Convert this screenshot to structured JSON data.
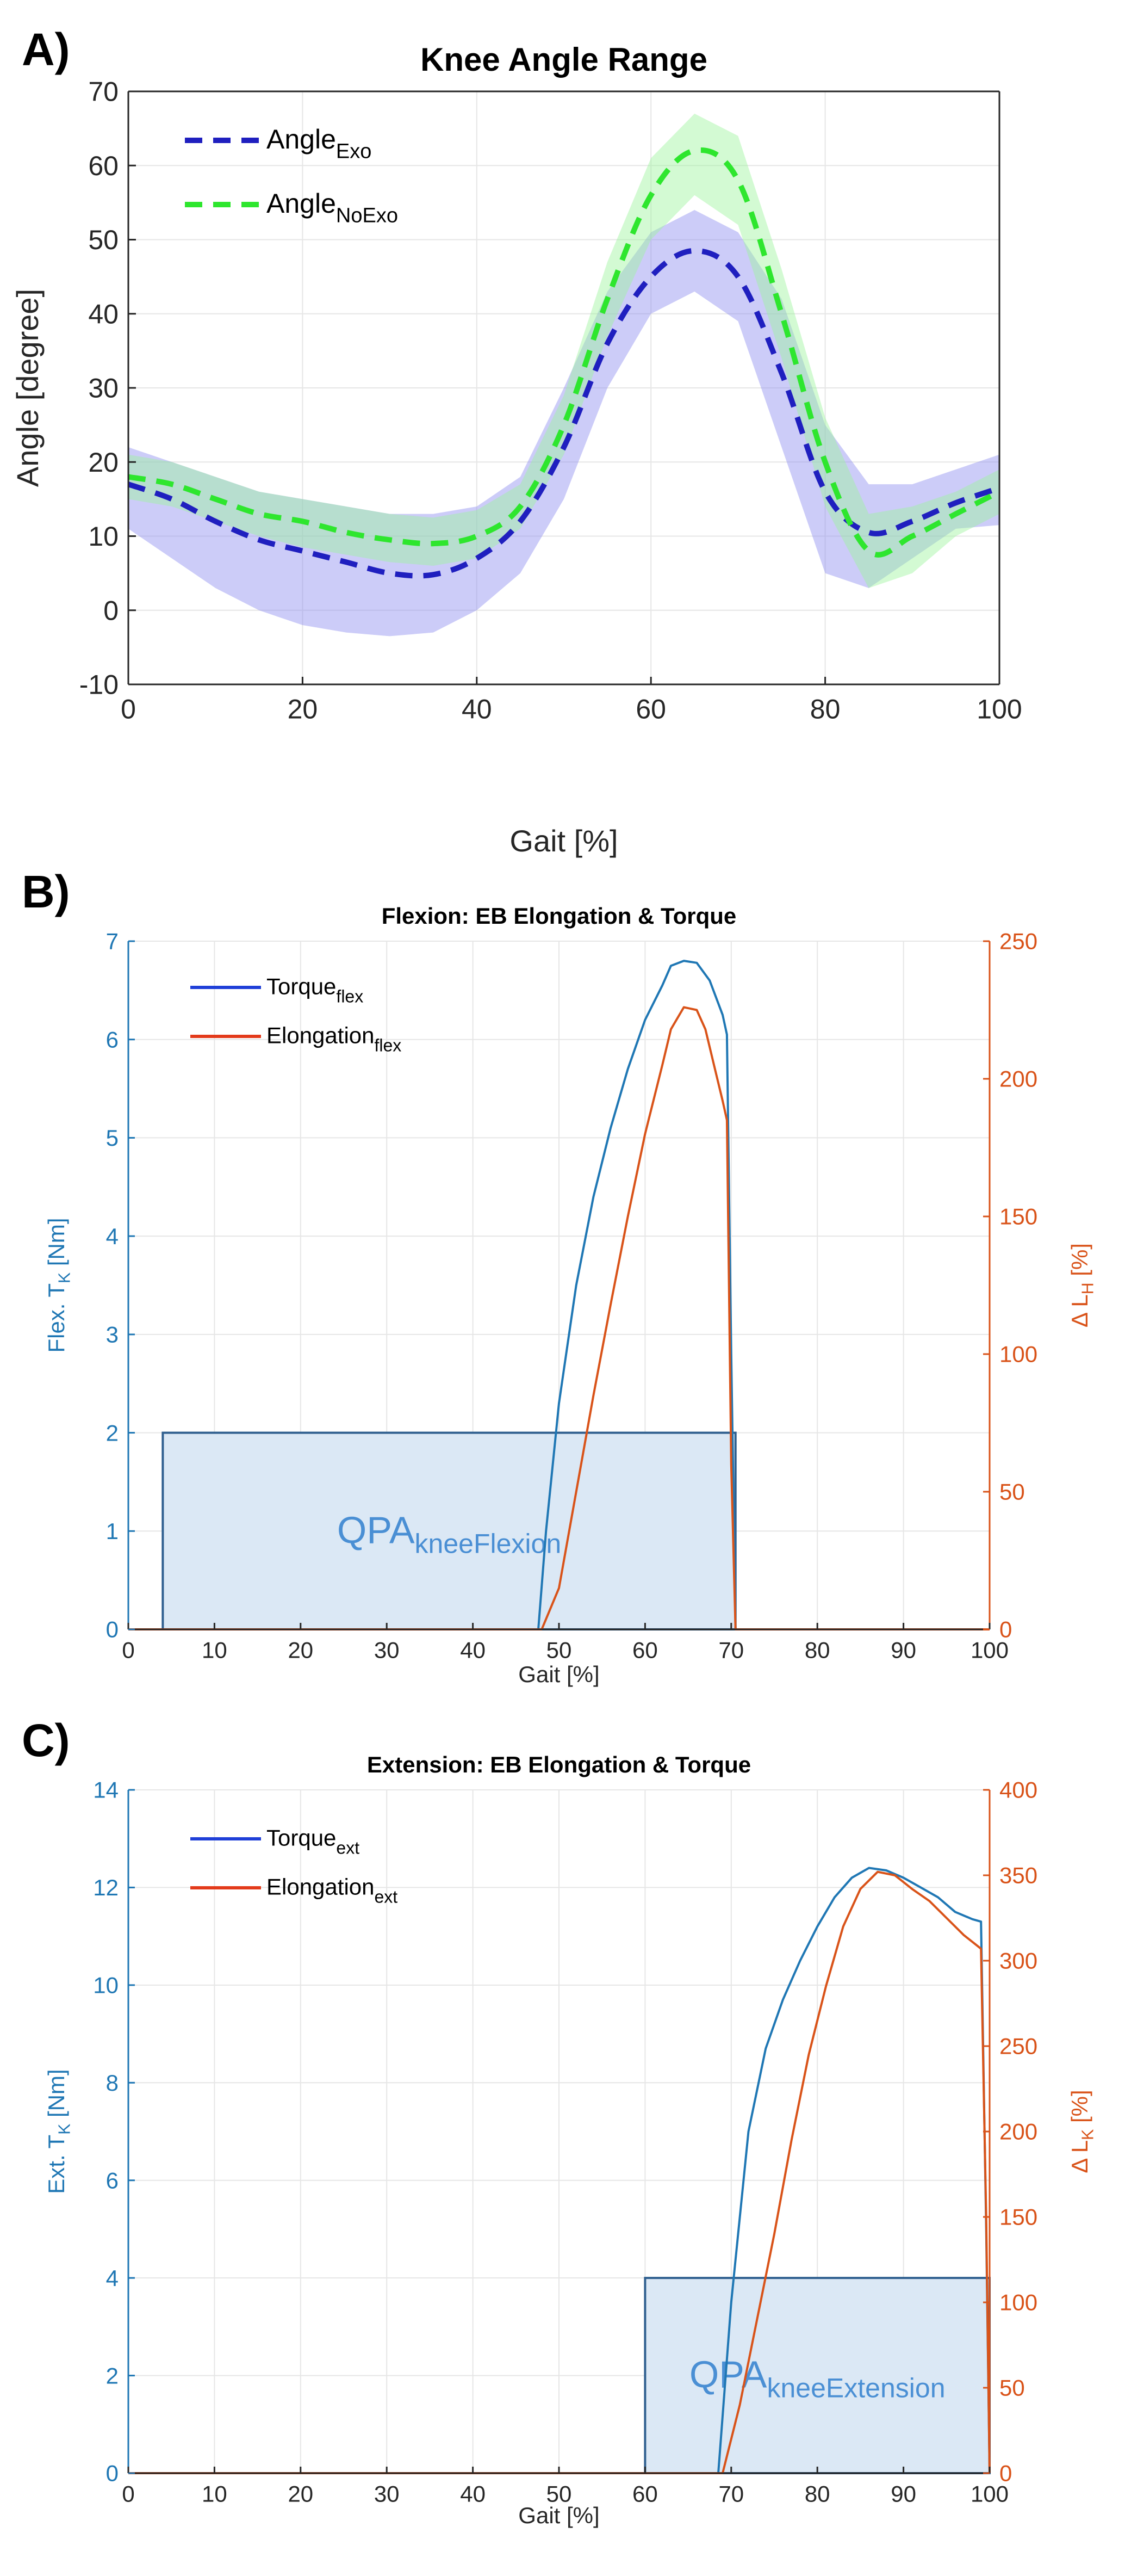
{
  "chart_data": [
    {
      "panel": "A)",
      "type": "line",
      "title": "Knee Angle Range",
      "xlabel": "Gait [%]",
      "ylabel": "Angle [degree]",
      "xlim": [
        0,
        100
      ],
      "ylim": [
        -10,
        70
      ],
      "xticks": [
        0,
        20,
        40,
        60,
        80,
        100
      ],
      "yticks": [
        -10,
        0,
        10,
        20,
        30,
        40,
        50,
        60,
        70
      ],
      "grid": true,
      "legend_position": "top-left",
      "series": [
        {
          "name": "Angle",
          "subscript": "Exo",
          "color": "#1f1fbf",
          "band_color": "#8f8fef",
          "style": "dashed",
          "x": [
            0,
            5,
            10,
            15,
            20,
            25,
            30,
            35,
            40,
            45,
            50,
            55,
            60,
            65,
            70,
            75,
            80,
            85,
            90,
            95,
            100
          ],
          "values": [
            17,
            15,
            12,
            9.5,
            8,
            6.5,
            5,
            4.8,
            7,
            12,
            22,
            36,
            45,
            48.5,
            45,
            32,
            16,
            10.5,
            12,
            14.5,
            16.5
          ],
          "lower": [
            11,
            7,
            3,
            0,
            -2,
            -3,
            -3.5,
            -3,
            0,
            5,
            15,
            30,
            40,
            43,
            39,
            22,
            5,
            3,
            7,
            11,
            11.5
          ],
          "upper": [
            22,
            20,
            18,
            16,
            15,
            14,
            13,
            13,
            14,
            18,
            30,
            43,
            51,
            54,
            51,
            42,
            25,
            17,
            17,
            19,
            21
          ]
        },
        {
          "name": "Angle",
          "subscript": "NoExo",
          "color": "#2ee62e",
          "band_color": "#9ef59e",
          "style": "dashed",
          "x": [
            0,
            5,
            10,
            15,
            20,
            25,
            30,
            35,
            40,
            45,
            50,
            55,
            60,
            65,
            70,
            75,
            80,
            85,
            90,
            95,
            100
          ],
          "values": [
            18,
            17,
            15,
            13,
            12,
            10.5,
            9.5,
            9,
            10,
            14,
            25,
            42,
            56,
            62,
            58,
            40,
            20,
            8,
            10,
            13,
            16
          ],
          "lower": [
            15,
            14,
            12,
            10,
            8.5,
            7.5,
            6.5,
            6,
            7,
            11,
            21,
            37,
            50,
            56,
            52,
            34,
            14,
            3,
            5,
            10,
            13
          ],
          "upper": [
            21,
            20,
            18,
            16,
            15,
            14,
            13,
            12.5,
            13.5,
            17,
            29,
            47,
            61,
            67,
            64,
            46,
            26,
            13,
            14,
            16,
            19
          ]
        }
      ]
    },
    {
      "panel": "B)",
      "type": "line",
      "title": "Flexion: EB Elongation & Torque",
      "xlabel": "Gait [%]",
      "ylabel": "Flex. T",
      "ylabel_sub": "K",
      "ylabel_unit": " [Nm]",
      "y2label": "Δ L",
      "y2label_sub": "H",
      "y2label_unit": " [%]",
      "xlim": [
        0,
        100
      ],
      "ylim": [
        0,
        7
      ],
      "y2lim": [
        0,
        250
      ],
      "xticks": [
        0,
        10,
        20,
        30,
        40,
        50,
        60,
        70,
        80,
        90,
        100
      ],
      "yticks": [
        0,
        1,
        2,
        3,
        4,
        5,
        6,
        7
      ],
      "y2ticks": [
        0,
        50,
        100,
        150,
        200,
        250
      ],
      "grid": true,
      "legend_position": "top-left",
      "series": [
        {
          "name": "Torque",
          "subscript": "flex",
          "axis": "left",
          "color": "#1f77b4",
          "legend_color": "#1f3fd8",
          "x": [
            0,
            47.6,
            48.5,
            50,
            52,
            54,
            56,
            58,
            60,
            62,
            63,
            64.5,
            66,
            67.5,
            69,
            69.5,
            70,
            70.5,
            100
          ],
          "values": [
            0,
            0,
            1.0,
            2.3,
            3.5,
            4.4,
            5.1,
            5.7,
            6.2,
            6.55,
            6.75,
            6.8,
            6.78,
            6.6,
            6.25,
            6.05,
            2.8,
            0,
            0
          ]
        },
        {
          "name": "Elongation",
          "subscript": "flex",
          "axis": "right",
          "color": "#d95319",
          "legend_color": "#e33a1a",
          "x": [
            0,
            48,
            50,
            52,
            54,
            56,
            58,
            60,
            62,
            63,
            64.5,
            66,
            67,
            68,
            69,
            69.5,
            70,
            70.5,
            100
          ],
          "values": [
            0,
            0,
            15,
            50,
            85,
            118,
            150,
            180,
            205,
            218,
            226,
            225,
            218,
            205,
            192,
            185,
            60,
            0,
            0
          ]
        }
      ],
      "annotation": {
        "text": "QPA",
        "subscript": "kneeFlexion",
        "x_range": [
          4,
          70.5
        ],
        "y_range": [
          0,
          2
        ]
      }
    },
    {
      "panel": "C)",
      "type": "line",
      "title": "Extension: EB Elongation & Torque",
      "xlabel": "Gait [%]",
      "ylabel": "Ext. T",
      "ylabel_sub": "K",
      "ylabel_unit": " [Nm]",
      "y2label": "Δ L",
      "y2label_sub": "K",
      "y2label_unit": " [%]",
      "xlim": [
        0,
        100
      ],
      "ylim": [
        0,
        14
      ],
      "y2lim": [
        0,
        400
      ],
      "xticks": [
        0,
        10,
        20,
        30,
        40,
        50,
        60,
        70,
        80,
        90,
        100
      ],
      "yticks": [
        0,
        2,
        4,
        6,
        8,
        10,
        12,
        14
      ],
      "y2ticks": [
        0,
        50,
        100,
        150,
        200,
        250,
        300,
        350,
        400
      ],
      "grid": true,
      "legend_position": "top-left",
      "series": [
        {
          "name": "Torque",
          "subscript": "ext",
          "axis": "left",
          "color": "#1f77b4",
          "legend_color": "#1f3fd8",
          "x": [
            0,
            68.5,
            70,
            72,
            74,
            76,
            78,
            80,
            82,
            84,
            86,
            88,
            90,
            92,
            94,
            96,
            98,
            99,
            99.6,
            100
          ],
          "values": [
            0,
            0,
            3.5,
            7,
            8.7,
            9.7,
            10.5,
            11.2,
            11.8,
            12.2,
            12.4,
            12.35,
            12.2,
            12.0,
            11.8,
            11.5,
            11.35,
            11.3,
            5,
            0
          ]
        },
        {
          "name": "Elongation",
          "subscript": "ext",
          "axis": "right",
          "color": "#d95319",
          "legend_color": "#e33a1a",
          "x": [
            0,
            69,
            71,
            73,
            75,
            77,
            79,
            81,
            83,
            85,
            87,
            89,
            91,
            93,
            95,
            97,
            99,
            99.6,
            100
          ],
          "values": [
            0,
            0,
            40,
            90,
            140,
            195,
            245,
            285,
            320,
            342,
            352,
            350,
            342,
            335,
            325,
            315,
            307,
            150,
            0
          ]
        }
      ],
      "annotation": {
        "text": "QPA",
        "subscript": "kneeExtension",
        "x_range": [
          60,
          100
        ],
        "y_range": [
          0,
          4
        ]
      }
    }
  ]
}
